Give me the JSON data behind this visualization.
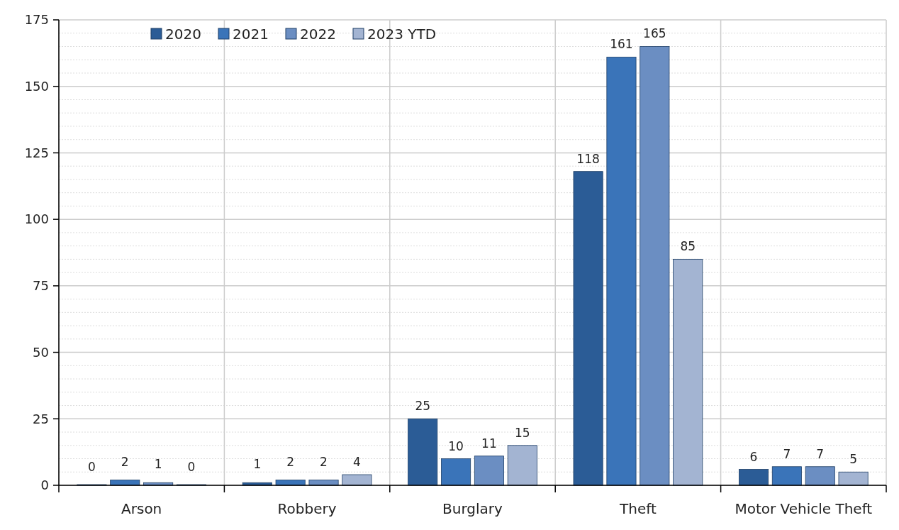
{
  "chart_data": {
    "type": "bar",
    "categories": [
      "Arson",
      "Robbery",
      "Burglary",
      "Theft",
      "Motor Vehicle Theft"
    ],
    "series": [
      {
        "name": "2020",
        "color": "#2b5c96",
        "values": [
          0,
          1,
          25,
          118,
          6
        ]
      },
      {
        "name": "2021",
        "color": "#3a74b9",
        "values": [
          2,
          2,
          10,
          161,
          7
        ]
      },
      {
        "name": "2022",
        "color": "#6b8ec2",
        "values": [
          1,
          2,
          11,
          165,
          7
        ]
      },
      {
        "name": "2023 YTD",
        "color": "#a3b4d2",
        "values": [
          0,
          4,
          15,
          85,
          5
        ]
      }
    ],
    "ylim": [
      0,
      175
    ],
    "yticks": [
      0,
      25,
      50,
      75,
      100,
      125,
      150,
      175
    ],
    "grid": true,
    "legend": "top",
    "data_labels": true
  }
}
